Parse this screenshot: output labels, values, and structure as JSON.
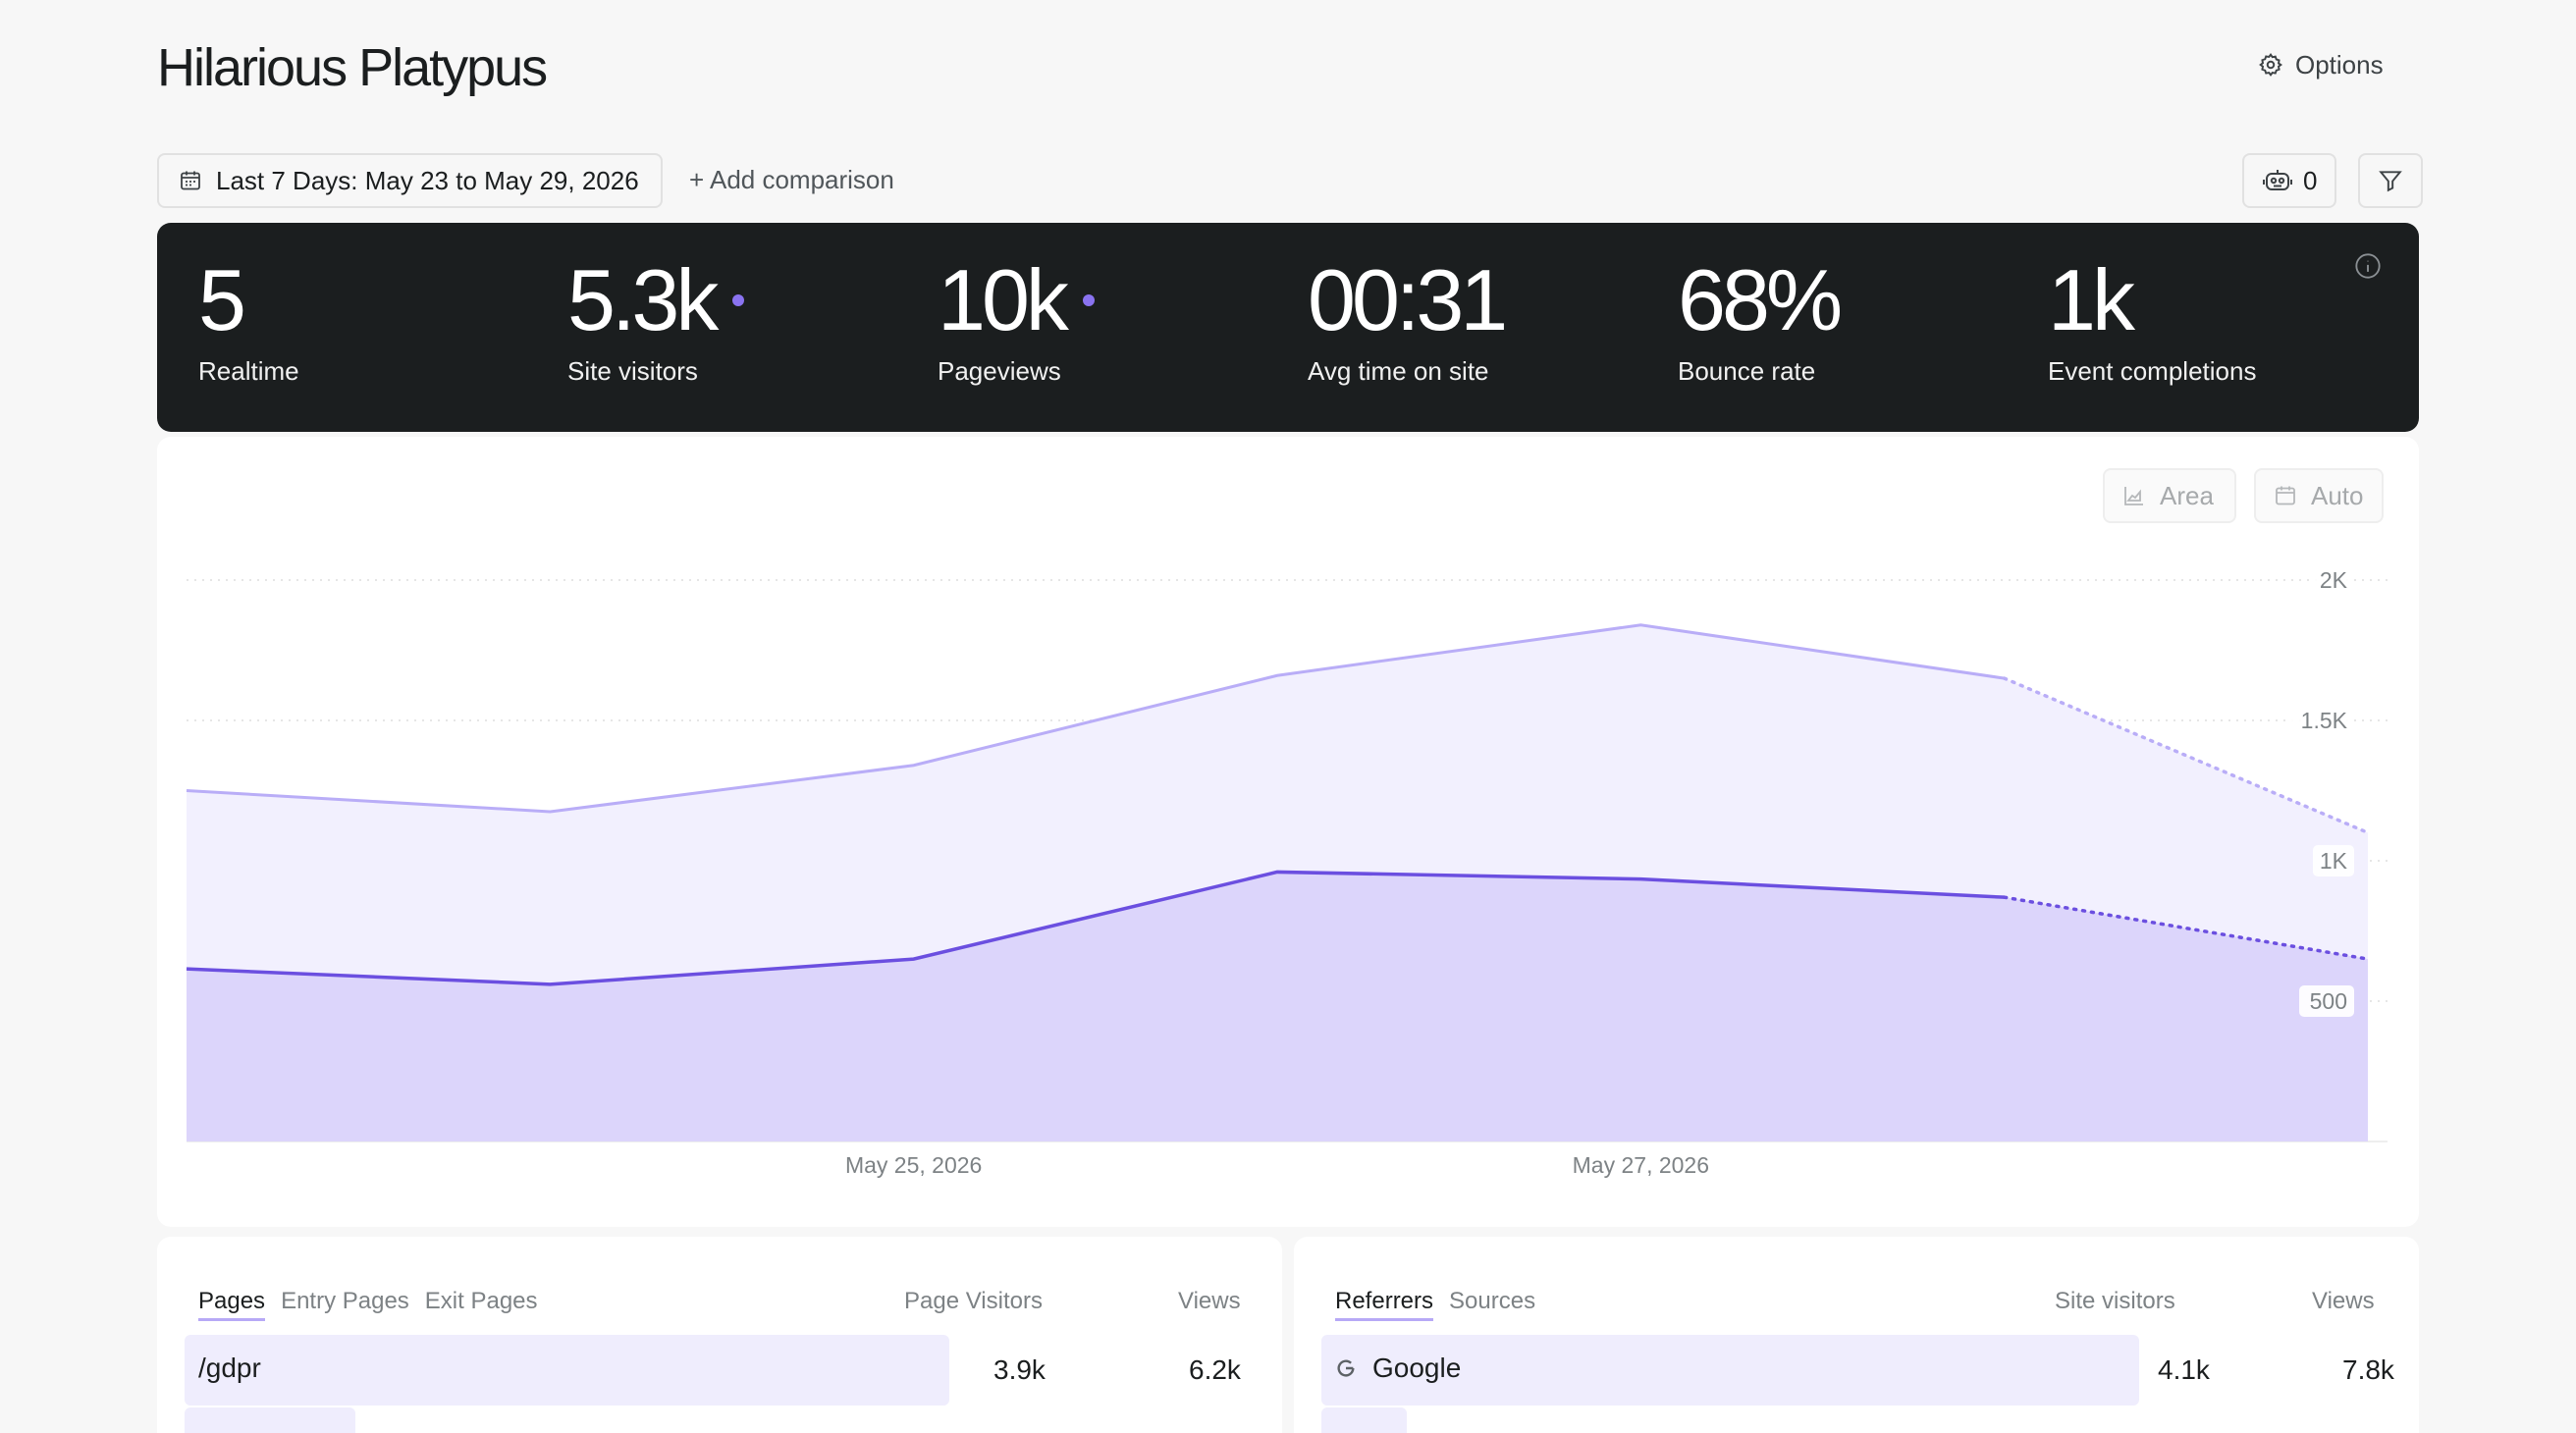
{
  "page": {
    "title": "Hilarious Platypus"
  },
  "header": {
    "options_label": "Options"
  },
  "toolbar": {
    "date_range": "Last 7 Days: May 23 to May 29, 2026",
    "add_comparison": "+ Add comparison",
    "bot_count": "0"
  },
  "stats": [
    {
      "value": "5",
      "label": "Realtime",
      "dot": false
    },
    {
      "value": "5.3k",
      "label": "Site visitors",
      "dot": true
    },
    {
      "value": "10k",
      "label": "Pageviews",
      "dot": true
    },
    {
      "value": "00:31",
      "label": "Avg time on site",
      "dot": false
    },
    {
      "value": "68%",
      "label": "Bounce rate",
      "dot": false
    },
    {
      "value": "1k",
      "label": "Event completions",
      "dot": false
    }
  ],
  "chart_controls": {
    "area_label": "Area",
    "auto_label": "Auto"
  },
  "chart_data": {
    "type": "area",
    "x": [
      "May 23, 2026",
      "May 24, 2026",
      "May 25, 2026",
      "May 26, 2026",
      "May 27, 2026",
      "May 28, 2026",
      "May 29, 2026"
    ],
    "xtick_labels": [
      "May 25, 2026",
      "May 27, 2026"
    ],
    "ytick_labels": [
      "2K",
      "1.5K",
      "1K",
      "500"
    ],
    "yticks": [
      2000,
      1500,
      1000,
      500
    ],
    "ylim": [
      0,
      2000
    ],
    "series": [
      {
        "values": [
          1250,
          1175,
          1340,
          1660,
          1840,
          1650,
          1100
        ],
        "color": "#b9adf7",
        "fill": "#f2f0fe",
        "partial_last": true
      },
      {
        "values": [
          615,
          560,
          650,
          960,
          935,
          870,
          650
        ],
        "color": "#6b4fe0",
        "fill": "#dcd5fb",
        "partial_last": true
      }
    ],
    "grid": true
  },
  "pages_table": {
    "tabs": [
      "Pages",
      "Entry Pages",
      "Exit Pages"
    ],
    "active_tab": "Pages",
    "columns": [
      "Page Visitors",
      "Views"
    ],
    "rows": [
      {
        "label": "/gdpr",
        "visitors": "3.9k",
        "views": "6.2k",
        "fraction": 0.95
      },
      {
        "label": "",
        "visitors": "",
        "views": "",
        "fraction": 0.2
      }
    ]
  },
  "referrers_table": {
    "tabs": [
      "Referrers",
      "Sources"
    ],
    "active_tab": "Referrers",
    "columns": [
      "Site visitors",
      "Views"
    ],
    "rows": [
      {
        "label": "Google",
        "icon": "google-icon",
        "visitors": "4.1k",
        "views": "7.8k",
        "fraction": 0.98
      },
      {
        "label": "",
        "visitors": "",
        "views": "",
        "fraction": 0.1
      }
    ]
  }
}
